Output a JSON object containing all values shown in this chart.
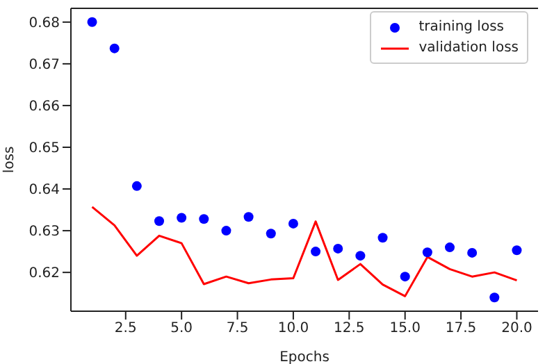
{
  "chart_data": {
    "type": "line",
    "xlabel": "Epochs",
    "ylabel": "loss",
    "x": [
      1,
      2,
      3,
      4,
      5,
      6,
      7,
      8,
      9,
      10,
      11,
      12,
      13,
      14,
      15,
      16,
      17,
      18,
      19,
      20
    ],
    "series": [
      {
        "name": "training loss",
        "type": "scatter",
        "color": "#0000ff",
        "marker": "circle",
        "values": [
          0.68,
          0.6737,
          0.6407,
          0.6323,
          0.6331,
          0.6328,
          0.63,
          0.6333,
          0.6293,
          0.6317,
          0.625,
          0.6257,
          0.624,
          0.6283,
          0.619,
          0.6248,
          0.626,
          0.6247,
          0.614,
          0.6253
        ]
      },
      {
        "name": "validation loss",
        "color": "#ff0000",
        "marker": "none",
        "line_style": "solid",
        "values": [
          0.6357,
          0.6313,
          0.624,
          0.6288,
          0.627,
          0.6172,
          0.619,
          0.6174,
          0.6183,
          0.6186,
          0.6322,
          0.6182,
          0.622,
          0.6171,
          0.6143,
          0.6237,
          0.6208,
          0.619,
          0.62,
          0.6181
        ]
      }
    ],
    "xlim": [
      0.05,
      20.95
    ],
    "ylim": [
      0.6107,
      0.6833
    ],
    "xticks": [
      {
        "value": 2.5,
        "label": "2.5"
      },
      {
        "value": 5,
        "label": "5.0"
      },
      {
        "value": 7.5,
        "label": "7.5"
      },
      {
        "value": 10,
        "label": "10.0"
      },
      {
        "value": 12.5,
        "label": "12.5"
      },
      {
        "value": 15,
        "label": "15.0"
      },
      {
        "value": 17.5,
        "label": "17.5"
      },
      {
        "value": 20,
        "label": "20.0"
      }
    ],
    "yticks": [
      0.62,
      0.63,
      0.64,
      0.65,
      0.66,
      0.67,
      0.68
    ],
    "grid": false,
    "legend": "top right"
  }
}
